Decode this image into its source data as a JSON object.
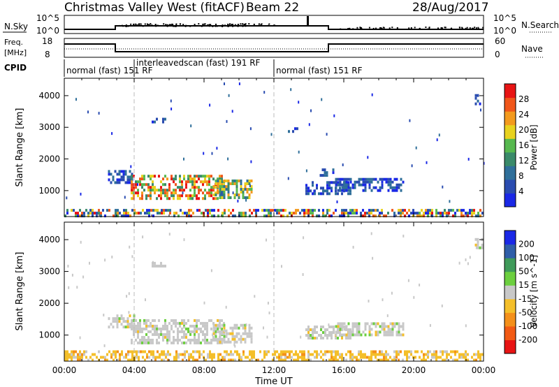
{
  "header": {
    "station": "Christmas Valley West (fitACF)",
    "beam": "Beam 22",
    "date": "28/Aug/2017"
  },
  "sky_panel": {
    "left_label": "N.Sky",
    "right_label": "N.Search",
    "left_ticks": [
      "10^5",
      "10^0"
    ],
    "right_ticks": [
      "10^5",
      "10^0"
    ]
  },
  "freq_panel": {
    "left_label_line1": "Freq.",
    "left_label_line2": "[MHz]",
    "right_label": "Nave",
    "left_ticks": [
      "18",
      "8"
    ],
    "right_ticks": [
      "60",
      "0"
    ]
  },
  "cpid": {
    "label": "CPID",
    "segments": [
      {
        "start": 0.0,
        "end": 4.0,
        "text": "normal (fast) 151 RF"
      },
      {
        "start": 4.0,
        "end": 12.0,
        "text": "interleavedscan (fast) 191 RF"
      },
      {
        "start": 12.0,
        "end": 24.0,
        "text": "normal (fast) 151 RF"
      }
    ]
  },
  "colors": {
    "power_scale": [
      "#1a28e6",
      "#2a4cb0",
      "#2f6f9a",
      "#3a8a6a",
      "#57b84f",
      "#e8d21f",
      "#f39a1e",
      "#f0561a",
      "#e81414"
    ],
    "velocity_scale": [
      "#e81414",
      "#f25a14",
      "#f4901a",
      "#f4bf2a",
      "#c8c8c8",
      "#6ccf3f",
      "#3f9a5a",
      "#2f5ea8",
      "#1a28e6"
    ]
  },
  "chart_data": [
    {
      "type": "heatmap",
      "name": "power",
      "ylabel": "Slant Range [km]",
      "y_ticks": [
        "1000",
        "2000",
        "3000",
        "4000"
      ],
      "ylim": [
        180,
        4550
      ],
      "xlim": [
        0,
        24
      ],
      "colorbar_label": "Power [dB]",
      "colorbar_ticks": [
        "4",
        "8",
        "12",
        "16",
        "20",
        "24",
        "28"
      ],
      "colorbar_range": [
        0,
        32
      ],
      "regions": [
        {
          "t0": 2.5,
          "t1": 4.1,
          "r0": 1200,
          "r1": 1650,
          "level": "low"
        },
        {
          "t0": 3.8,
          "t1": 9.2,
          "r0": 700,
          "r1": 1500,
          "level": "high"
        },
        {
          "t0": 8.5,
          "t1": 10.8,
          "r0": 700,
          "r1": 1350,
          "level": "mid"
        },
        {
          "t0": 13.8,
          "t1": 16.5,
          "r0": 900,
          "r1": 1300,
          "level": "low"
        },
        {
          "t0": 15.5,
          "t1": 19.5,
          "r0": 1000,
          "r1": 1400,
          "level": "low"
        },
        {
          "t0": 0.0,
          "t1": 24.0,
          "r0": 190,
          "r1": 420,
          "level": "ground"
        },
        {
          "t0": 5.0,
          "t1": 5.8,
          "r0": 3150,
          "r1": 3300,
          "level": "low"
        },
        {
          "t0": 12.8,
          "t1": 13.5,
          "r0": 2850,
          "r1": 3000,
          "level": "low"
        },
        {
          "t0": 14.5,
          "t1": 15.5,
          "r0": 1450,
          "r1": 1700,
          "level": "low"
        },
        {
          "t0": 23.5,
          "t1": 24.0,
          "r0": 3700,
          "r1": 4050,
          "level": "low"
        }
      ]
    },
    {
      "type": "heatmap",
      "name": "velocity",
      "ylabel": "Slant Range [km]",
      "y_ticks": [
        "1000",
        "2000",
        "3000",
        "4000"
      ],
      "ylim": [
        180,
        4550
      ],
      "xlim": [
        0,
        24
      ],
      "xlabel": "Time UT",
      "x_ticks": [
        "00:00",
        "04:00",
        "08:00",
        "12:00",
        "16:00",
        "20:00",
        "00:00"
      ],
      "colorbar_label": "Velocity [m s^-1]",
      "colorbar_ticks": [
        "-200",
        "-100",
        "-50",
        "-15",
        "15",
        "50",
        "100",
        "200"
      ],
      "colorbar_range": [
        -250,
        250
      ],
      "regions": [
        {
          "t0": 2.5,
          "t1": 4.1,
          "r0": 1200,
          "r1": 1650,
          "level": "grey"
        },
        {
          "t0": 3.8,
          "t1": 9.2,
          "r0": 700,
          "r1": 1500,
          "level": "grey"
        },
        {
          "t0": 8.5,
          "t1": 10.8,
          "r0": 700,
          "r1": 1350,
          "level": "grey"
        },
        {
          "t0": 13.8,
          "t1": 16.5,
          "r0": 900,
          "r1": 1300,
          "level": "grey"
        },
        {
          "t0": 15.5,
          "t1": 19.5,
          "r0": 1000,
          "r1": 1400,
          "level": "grey"
        },
        {
          "t0": 0.0,
          "t1": 24.0,
          "r0": 190,
          "r1": 520,
          "level": "orange"
        },
        {
          "t0": 5.0,
          "t1": 5.8,
          "r0": 3150,
          "r1": 3300,
          "level": "grey"
        },
        {
          "t0": 23.5,
          "t1": 24.0,
          "r0": 3700,
          "r1": 4050,
          "level": "grey"
        }
      ]
    }
  ]
}
